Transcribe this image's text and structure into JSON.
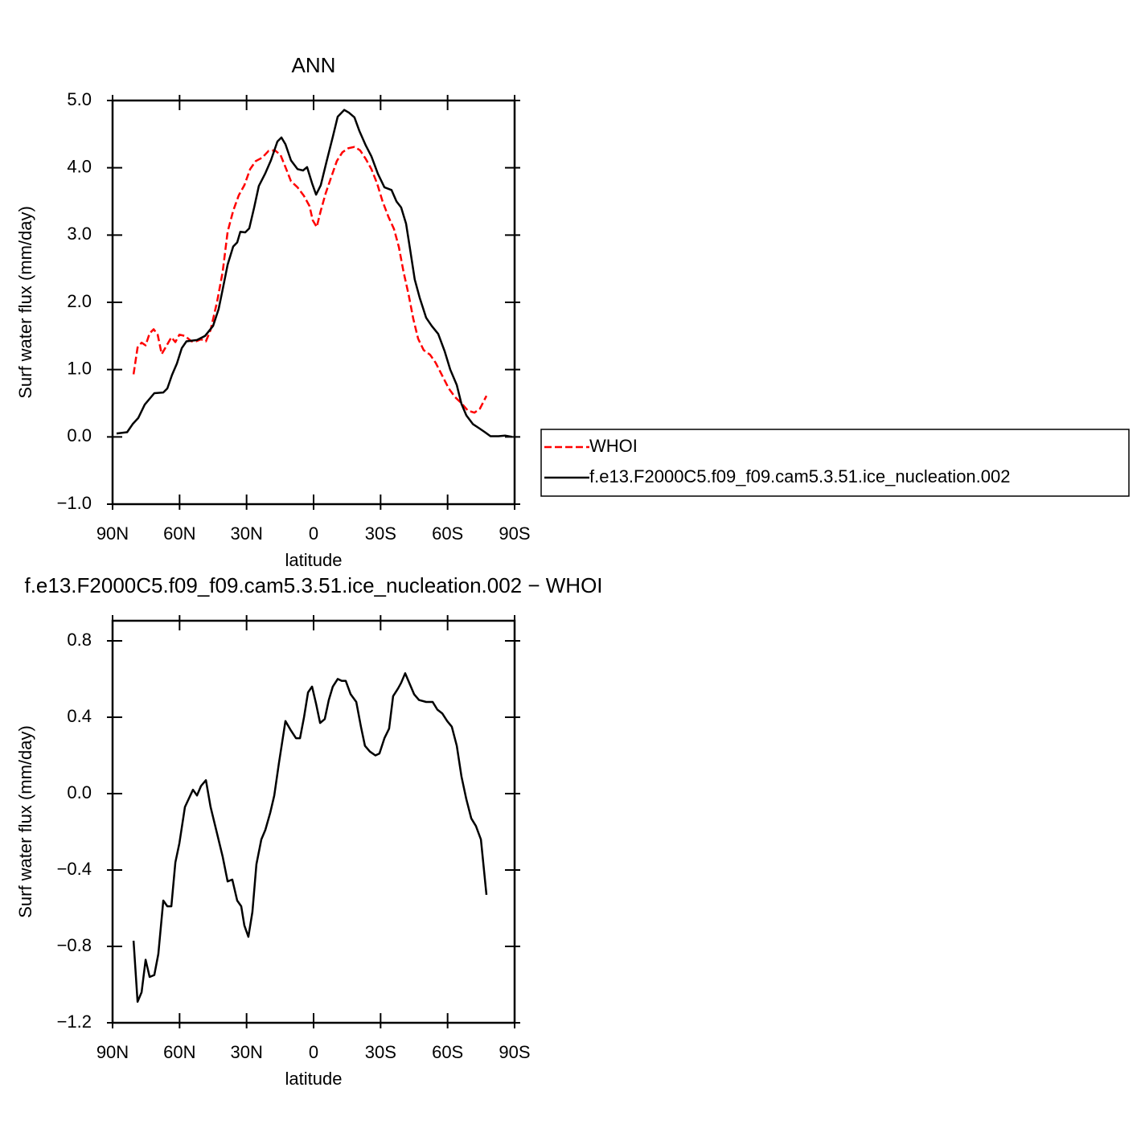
{
  "chart_data": [
    {
      "type": "line",
      "title": "ANN",
      "xlabel": "latitude",
      "ylabel": "Surf water flux (mm/day)",
      "xlim": [
        90,
        -90
      ],
      "xticks": [
        {
          "value": 90,
          "label": "90N"
        },
        {
          "value": 60,
          "label": "60N"
        },
        {
          "value": 30,
          "label": "30N"
        },
        0,
        {
          "value": -30,
          "label": "30S"
        },
        {
          "value": -60,
          "label": "60S"
        },
        {
          "value": -90,
          "label": "90S"
        }
      ],
      "ylim": [
        -1,
        5
      ],
      "yticks": [
        {
          "value": 5,
          "label": "5.0"
        },
        {
          "value": 4,
          "label": "4.0"
        },
        {
          "value": 3,
          "label": "3.0"
        },
        {
          "value": 2,
          "label": "2.0"
        },
        {
          "value": 1,
          "label": "1.0"
        },
        {
          "value": 0,
          "label": "0.0"
        },
        {
          "value": -1,
          "label": "−1.0"
        }
      ],
      "legend": "right",
      "series": [
        {
          "name": "WHOI",
          "color": "#ff0000",
          "linestyle": "dashed",
          "x": [
            80.6,
            78.8,
            77,
            75.2,
            73.4,
            71.6,
            69.8,
            68,
            65.9,
            63.7,
            61.9,
            60.1,
            57.6,
            54.7,
            52.6,
            50.4,
            48.2,
            46.1,
            43.2,
            40.7,
            38.5,
            36,
            33.5,
            31,
            28.4,
            25.9,
            23,
            20.2,
            17.3,
            14.8,
            12.6,
            10.1,
            7.2,
            4.3,
            1.8,
            0.4,
            -1.4,
            -3.2,
            -5.4,
            -7.9,
            -10.4,
            -12.9,
            -15.5,
            -18.3,
            -20.8,
            -23.4,
            -25.9,
            -28.4,
            -30.9,
            -33.5,
            -36,
            -38.2,
            -40.3,
            -42.5,
            -44.6,
            -46.8,
            -49.3,
            -52.2,
            -54.7,
            -57.6,
            -60.5,
            -63.4,
            -66.2,
            -69.1,
            -72,
            -74.5,
            -77.4
          ],
          "values": [
            0.93,
            1.33,
            1.4,
            1.36,
            1.54,
            1.6,
            1.52,
            1.23,
            1.35,
            1.48,
            1.41,
            1.52,
            1.5,
            1.42,
            1.42,
            1.45,
            1.42,
            1.59,
            2.01,
            2.45,
            3.05,
            3.36,
            3.59,
            3.74,
            3.98,
            4.1,
            4.15,
            4.25,
            4.26,
            4.19,
            4.01,
            3.8,
            3.71,
            3.58,
            3.43,
            3.22,
            3.12,
            3.36,
            3.62,
            3.86,
            4.1,
            4.23,
            4.29,
            4.31,
            4.26,
            4.13,
            3.98,
            3.77,
            3.5,
            3.27,
            3.09,
            2.82,
            2.45,
            2.12,
            1.76,
            1.46,
            1.29,
            1.22,
            1.1,
            0.91,
            0.72,
            0.59,
            0.5,
            0.39,
            0.36,
            0.42,
            0.61
          ]
        },
        {
          "name": "f.e13.F2000C5.f09_f09.cam5.3.51.ice_nucleation.002",
          "color": "#000000",
          "linestyle": "solid",
          "x": [
            88.2,
            83.5,
            81,
            78.5,
            75.6,
            71.3,
            67.3,
            65.5,
            63.4,
            61.2,
            59,
            56.9,
            52.2,
            48.6,
            45,
            42.5,
            40.7,
            38.5,
            36,
            34.2,
            32.8,
            30.6,
            28.8,
            26.6,
            24.5,
            21.6,
            19.1,
            16.2,
            14.4,
            12.6,
            10.1,
            7.2,
            4.7,
            2.9,
            0.7,
            -1.1,
            -3.2,
            -5.8,
            -8.6,
            -10.8,
            -13.7,
            -15.8,
            -18.3,
            -20.5,
            -23.4,
            -25.9,
            -28.8,
            -31.7,
            -34.9,
            -37.1,
            -39.2,
            -41.4,
            -43.2,
            -45.3,
            -47.5,
            -50.4,
            -52.9,
            -55.8,
            -58.7,
            -61.2,
            -64.1,
            -66.2,
            -68.4,
            -71.3,
            -74.1,
            -76.7,
            -79.2,
            -82.8,
            -85.7,
            -88.9
          ],
          "values": [
            0.05,
            0.07,
            0.19,
            0.28,
            0.48,
            0.65,
            0.66,
            0.72,
            0.92,
            1.09,
            1.32,
            1.42,
            1.44,
            1.5,
            1.65,
            1.9,
            2.19,
            2.56,
            2.83,
            2.89,
            3.05,
            3.04,
            3.1,
            3.41,
            3.73,
            3.92,
            4.11,
            4.39,
            4.45,
            4.35,
            4.11,
            3.98,
            3.96,
            4.01,
            3.77,
            3.6,
            3.74,
            4.09,
            4.46,
            4.76,
            4.86,
            4.82,
            4.75,
            4.55,
            4.33,
            4.17,
            3.91,
            3.71,
            3.67,
            3.5,
            3.41,
            3.17,
            2.79,
            2.34,
            2.07,
            1.77,
            1.65,
            1.53,
            1.27,
            1.0,
            0.77,
            0.49,
            0.32,
            0.19,
            0.13,
            0.07,
            0.01,
            0.01,
            0.02,
            0.0
          ]
        }
      ]
    },
    {
      "type": "line",
      "title": "f.e13.F2000C5.f09_f09.cam5.3.51.ice_nucleation.002 − WHOI",
      "xlabel": "latitude",
      "ylabel": "Surf water flux (mm/day)",
      "xlim": [
        90,
        -90
      ],
      "xticks": [
        {
          "value": 90,
          "label": "90N"
        },
        {
          "value": 60,
          "label": "60N"
        },
        {
          "value": 30,
          "label": "30N"
        },
        0,
        {
          "value": -30,
          "label": "30S"
        },
        {
          "value": -60,
          "label": "60S"
        },
        {
          "value": -90,
          "label": "90S"
        }
      ],
      "ylim": [
        -1.2,
        0.905
      ],
      "yticks": [
        0.8,
        0.4,
        {
          "value": 0,
          "label": "0.0"
        },
        {
          "value": -0.4,
          "label": "−0.4"
        },
        {
          "value": -0.8,
          "label": "−0.8"
        },
        {
          "value": -1.2,
          "label": "−1.2"
        }
      ],
      "series": [
        {
          "color": "#000000",
          "linestyle": "solid",
          "x": [
            80.6,
            78.8,
            77,
            75.2,
            73.4,
            71.3,
            69.5,
            67.3,
            65.5,
            63.7,
            61.9,
            60.1,
            57.6,
            54,
            52.2,
            50.4,
            48.2,
            46.1,
            43.2,
            40.7,
            38.5,
            36.4,
            34.2,
            32.4,
            31,
            29.2,
            27.4,
            25.6,
            23.4,
            21.6,
            19.4,
            17.6,
            15.5,
            12.6,
            10.1,
            7.9,
            6.1,
            4.3,
            2.5,
            0.7,
            -1.1,
            -2.9,
            -5,
            -6.8,
            -8.6,
            -10.8,
            -12.6,
            -14.4,
            -16.6,
            -19.1,
            -21.2,
            -23,
            -25.2,
            -27.7,
            -29.5,
            -31.7,
            -33.8,
            -35.6,
            -37.8,
            -39.2,
            -41,
            -43.2,
            -45,
            -47.2,
            -50.4,
            -53.3,
            -55.4,
            -57.6,
            -59.8,
            -61.9,
            -64.1,
            -66.2,
            -68.4,
            -70.6,
            -72.7,
            -74.9,
            -77.4
          ],
          "values": [
            -0.77,
            -1.09,
            -1.04,
            -0.87,
            -0.96,
            -0.95,
            -0.84,
            -0.56,
            -0.59,
            -0.59,
            -0.36,
            -0.26,
            -0.07,
            0.02,
            -0.01,
            0.04,
            0.07,
            -0.07,
            -0.21,
            -0.33,
            -0.46,
            -0.45,
            -0.56,
            -0.59,
            -0.69,
            -0.75,
            -0.62,
            -0.37,
            -0.24,
            -0.19,
            -0.1,
            -0.01,
            0.16,
            0.38,
            0.33,
            0.29,
            0.29,
            0.4,
            0.53,
            0.56,
            0.47,
            0.37,
            0.39,
            0.49,
            0.56,
            0.6,
            0.59,
            0.59,
            0.52,
            0.48,
            0.35,
            0.25,
            0.22,
            0.2,
            0.21,
            0.29,
            0.34,
            0.51,
            0.55,
            0.58,
            0.63,
            0.57,
            0.52,
            0.49,
            0.48,
            0.48,
            0.44,
            0.42,
            0.38,
            0.35,
            0.25,
            0.09,
            -0.03,
            -0.13,
            -0.17,
            -0.24,
            -0.53
          ]
        }
      ]
    }
  ]
}
